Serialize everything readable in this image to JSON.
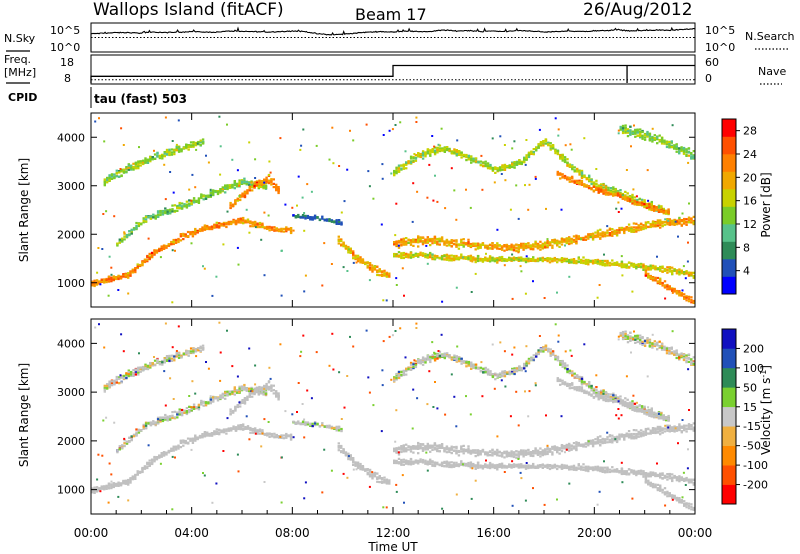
{
  "header": {
    "station": "Wallops Island (fitACF)",
    "beam": "Beam 17",
    "date": "26/Aug/2012"
  },
  "panel_labels": {
    "nsky": "N.Sky",
    "nsky_top": "10^5",
    "nsky_bottom": "10^0",
    "nsky_right_top": "10^5",
    "nsky_right_bottom": "10^0",
    "nsearch": "N.Search",
    "freq_l1": "Freq.",
    "freq_l2": "[MHz]",
    "freq_top": "18",
    "freq_bottom": "8",
    "nave_top": "60",
    "nave_bottom": "0",
    "nave": "Nave",
    "cpid": "CPID",
    "mode": "tau (fast) 503"
  },
  "colors": {
    "power": [
      "#0000ff",
      "#2050b8",
      "#2e8b57",
      "#57c28a",
      "#7acc28",
      "#c8d200",
      "#f0a800",
      "#ff8000",
      "#ff5000",
      "#ff0000"
    ],
    "velocity": [
      "#ff0000",
      "#ff5000",
      "#ff8a00",
      "#f0b040",
      "#c8c8c8",
      "#7ad030",
      "#2e8b57",
      "#2050b8",
      "#1010c0"
    ],
    "ground_scatter": "#c0c0c0"
  },
  "chart_data": [
    {
      "type": "line",
      "name": "sky-noise-panel",
      "ylim": [
        0,
        5
      ],
      "x_hours": [
        0,
        0.5,
        1,
        1.5,
        2,
        2.5,
        3,
        3.5,
        4,
        4.5,
        5,
        5.5,
        6,
        6.5,
        7,
        7.5,
        8,
        8.5,
        9,
        9.5,
        10,
        10.5,
        11,
        11.5,
        12,
        12.5,
        13,
        13.5,
        14,
        14.5,
        15,
        15.5,
        16,
        16.5,
        17,
        17.5,
        18,
        18.5,
        19,
        19.5,
        20,
        20.5,
        21,
        21.5,
        22,
        22.5,
        23,
        23.5,
        24
      ],
      "series": [
        {
          "values": [
            3.2,
            3.3,
            3.4,
            3.4,
            3.3,
            3.5,
            3.4,
            3.5,
            3.6,
            3.5,
            3.5,
            3.7,
            3.6,
            3.6,
            3.5,
            3.6,
            3.7,
            3.6,
            3.2,
            3.0,
            3.1,
            3.3,
            3.5,
            3.6,
            3.5,
            3.7,
            3.6,
            3.6,
            3.9,
            3.7,
            3.8,
            3.6,
            3.7,
            3.6,
            3.8,
            3.7,
            3.5,
            3.6,
            3.7,
            3.6,
            3.7,
            3.8,
            3.9,
            3.7,
            3.8,
            3.9,
            3.8,
            4.0,
            4.1
          ]
        },
        {
          "values": [
            2.5,
            2.5,
            2.5,
            2.5,
            2.5,
            2.5,
            2.5,
            2.5,
            2.5,
            2.5,
            2.5,
            2.5,
            2.5,
            2.5,
            2.5,
            2.5,
            2.5,
            2.5,
            2.5,
            2.5,
            2.5,
            2.5,
            2.5,
            2.5,
            2.5,
            2.5,
            2.5,
            2.5,
            2.5,
            2.5,
            2.5,
            2.5,
            2.5,
            2.5,
            2.5,
            2.5,
            2.5,
            2.5,
            2.5,
            2.5,
            2.5,
            2.5,
            2.5,
            2.5,
            2.5,
            2.5,
            2.5,
            2.5,
            2.5
          ]
        }
      ]
    },
    {
      "type": "line",
      "name": "frequency-nave-panel",
      "ylim": [
        8,
        18
      ],
      "series": [
        {
          "name": "Freq.",
          "x_hours": [
            0,
            12,
            12,
            24
          ],
          "values": [
            10.5,
            10.5,
            14.5,
            14.5
          ]
        },
        {
          "name": "Nave",
          "x_hours": [
            0,
            24
          ],
          "values": [
            9.2,
            9.2
          ]
        },
        {
          "x_hours": [
            0,
            24
          ],
          "values": [
            9.6,
            9.6
          ]
        }
      ],
      "spikes_x_hours": [
        21.3
      ]
    },
    {
      "type": "heatmap",
      "name": "power-panel",
      "xlabel": "",
      "ylabel": "Slant Range [km]",
      "xlim": [
        0,
        24
      ],
      "ylim": [
        500,
        4500
      ],
      "yticks": [
        1000,
        2000,
        3000,
        4000
      ],
      "colorbar": {
        "label": "Power [dB]",
        "ticks": [
          4,
          8,
          12,
          16,
          20,
          24,
          28
        ],
        "range": [
          0,
          30
        ]
      },
      "bands": [
        {
          "x_hours": [
            0.0,
            1.5,
            2.5,
            3.5,
            4.5,
            6.0,
            7.0,
            8.0
          ],
          "range_km": [
            1000,
            1200,
            1650,
            1950,
            2150,
            2300,
            2150,
            2100
          ],
          "thickness_km": 160,
          "power_db": 22
        },
        {
          "x_hours": [
            1.0,
            2.0,
            3.0,
            4.0,
            5.0,
            6.0,
            7.0
          ],
          "range_km": [
            1800,
            2300,
            2500,
            2700,
            2900,
            3100,
            3000
          ],
          "thickness_km": 180,
          "power_db": 13
        },
        {
          "x_hours": [
            0.5,
            1.5,
            2.5,
            3.5,
            4.5
          ],
          "range_km": [
            3100,
            3400,
            3600,
            3800,
            3950
          ],
          "thickness_km": 200,
          "power_db": 14
        },
        {
          "x_hours": [
            5.5,
            6.5,
            7.0,
            7.5
          ],
          "range_km": [
            2600,
            3050,
            3150,
            2900
          ],
          "thickness_km": 220,
          "power_db": 22
        },
        {
          "x_hours": [
            8.0,
            9.0,
            10.0
          ],
          "range_km": [
            2400,
            2350,
            2250
          ],
          "thickness_km": 120,
          "power_db": 6
        },
        {
          "x_hours": [
            9.8,
            10.5,
            11.2,
            11.9
          ],
          "range_km": [
            1900,
            1550,
            1300,
            1150
          ],
          "thickness_km": 200,
          "power_db": 20
        },
        {
          "x_hours": [
            12.0,
            13.5,
            15.0,
            16.5,
            18.0,
            19.5,
            21.0,
            22.5,
            24.0
          ],
          "range_km": [
            1850,
            1900,
            1800,
            1750,
            1800,
            1950,
            2100,
            2250,
            2300
          ],
          "thickness_km": 220,
          "power_db": 20
        },
        {
          "x_hours": [
            12.0,
            14.0,
            16.0,
            18.0,
            20.0,
            22.0,
            24.0
          ],
          "range_km": [
            1600,
            1550,
            1500,
            1500,
            1450,
            1350,
            1200
          ],
          "thickness_km": 160,
          "power_db": 17
        },
        {
          "x_hours": [
            12.0,
            13.0,
            14.0,
            15.0,
            16.0,
            17.0,
            18.0,
            19.0,
            20.0,
            21.0,
            22.0,
            23.0
          ],
          "range_km": [
            3300,
            3650,
            3800,
            3600,
            3350,
            3500,
            3950,
            3450,
            3050,
            2850,
            2650,
            2450
          ],
          "thickness_km": 200,
          "power_db": 15
        },
        {
          "x_hours": [
            18.5,
            20.0,
            21.5,
            23.0
          ],
          "range_km": [
            3250,
            2950,
            2700,
            2450
          ],
          "thickness_km": 150,
          "power_db": 22
        },
        {
          "x_hours": [
            21.0,
            22.5,
            24.0
          ],
          "range_km": [
            4200,
            4000,
            3600
          ],
          "thickness_km": 260,
          "power_db": 13
        },
        {
          "x_hours": [
            22.0,
            23.0,
            24.0
          ],
          "range_km": [
            1200,
            900,
            600
          ],
          "thickness_km": 160,
          "power_db": 22
        }
      ]
    },
    {
      "type": "heatmap",
      "name": "velocity-panel",
      "xlabel": "Time UT",
      "ylabel": "Slant Range [km]",
      "xlim": [
        0,
        24
      ],
      "xticks": [
        "00:00",
        "04:00",
        "08:00",
        "12:00",
        "16:00",
        "20:00",
        "00:00"
      ],
      "ylim": [
        500,
        4500
      ],
      "yticks": [
        1000,
        2000,
        3000,
        4000
      ],
      "colorbar": {
        "label": "Velocity [m s^-1]",
        "ticks": [
          200,
          100,
          50,
          15,
          -15,
          -50,
          -100,
          -200
        ],
        "range": [
          -250,
          250
        ]
      }
    }
  ]
}
